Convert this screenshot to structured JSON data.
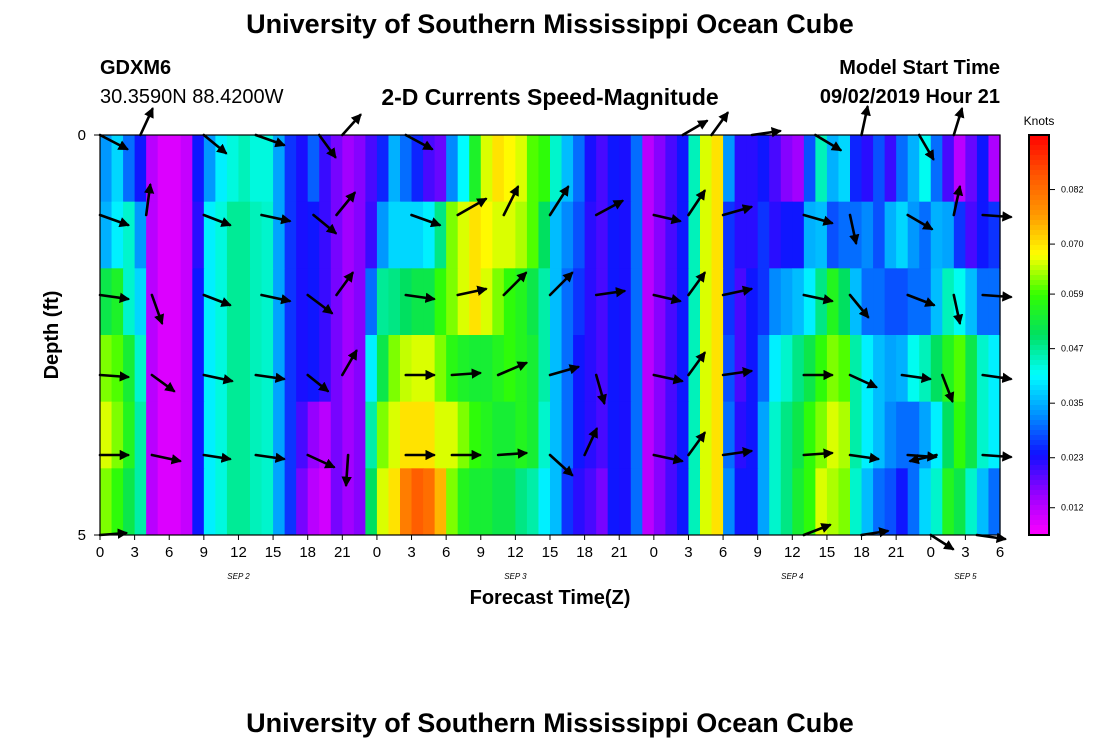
{
  "header": {
    "title": "University of Southern Mississippi Ocean Cube",
    "station_name": "GDXM6",
    "station_coords": "30.3590N 88.4200W",
    "plot_title": "2-D Currents Speed-Magnitude",
    "start_label": "Model Start Time",
    "start_value": "09/02/2019 Hour 21"
  },
  "footer": {
    "title": "University of Southern Mississippi Ocean Cube"
  },
  "chart_data": {
    "type": "heatmap",
    "title": "2-D Currents Speed-Magnitude",
    "xlabel": "Forecast Time(Z)",
    "ylabel": "Depth (ft)",
    "ylim": [
      0,
      5
    ],
    "y_ticks": [
      "0",
      "5"
    ],
    "x_tick_labels": [
      "0",
      "3",
      "6",
      "9",
      "12",
      "15",
      "18",
      "21",
      "0",
      "3",
      "6",
      "9",
      "12",
      "15",
      "18",
      "21",
      "0",
      "3",
      "6",
      "9",
      "12",
      "15",
      "18",
      "21",
      "0",
      "3",
      "6"
    ],
    "date_labels": [
      {
        "label": "SEP 2",
        "hour": 12
      },
      {
        "label": "SEP 3",
        "hour": 36
      },
      {
        "label": "SEP 4",
        "hour": 60
      },
      {
        "label": "SEP 5",
        "hour": 75
      }
    ],
    "x_range_hours": [
      0,
      78
    ],
    "depth_layers": 5,
    "colorbar": {
      "unit": "Knots",
      "range": [
        0.006,
        0.094
      ],
      "tick_values": [
        0.012,
        0.023,
        0.035,
        0.047,
        0.059,
        0.07,
        0.082
      ],
      "tick_labels": [
        "0.012",
        "0.023",
        "0.035",
        "0.047",
        "0.059",
        "0.070",
        "0.082"
      ],
      "colors": [
        "#ff00ff",
        "#9900ff",
        "#1010ff",
        "#0090ff",
        "#00ffff",
        "#00e060",
        "#33ff00",
        "#ffff00",
        "#ff9900",
        "#ff5500",
        "#ff0000"
      ]
    },
    "speed_grid": [
      [
        0.033,
        0.038,
        0.03,
        0.024,
        0.012,
        0.009,
        0.009,
        0.011,
        0.024,
        0.033,
        0.04,
        0.043,
        0.045,
        0.043,
        0.043,
        0.034,
        0.026,
        0.023,
        0.029,
        0.021,
        0.017,
        0.014,
        0.016,
        0.02,
        0.025,
        0.035,
        0.03,
        0.025,
        0.02,
        0.018,
        0.032,
        0.041,
        0.055,
        0.066,
        0.07,
        0.068,
        0.066,
        0.06,
        0.058,
        0.044,
        0.036,
        0.03,
        0.023,
        0.02,
        0.024,
        0.023,
        0.03,
        0.012,
        0.016,
        0.02,
        0.024,
        0.045,
        0.066,
        0.07,
        0.033,
        0.022,
        0.022,
        0.024,
        0.02,
        0.016,
        0.014,
        0.028,
        0.045,
        0.035,
        0.038,
        0.025,
        0.022,
        0.028,
        0.021,
        0.03,
        0.035,
        0.042,
        0.03,
        0.02,
        0.012,
        0.018,
        0.024,
        0.013
      ],
      [
        0.035,
        0.04,
        0.044,
        0.033,
        0.012,
        0.009,
        0.009,
        0.011,
        0.022,
        0.04,
        0.043,
        0.047,
        0.047,
        0.045,
        0.044,
        0.034,
        0.026,
        0.023,
        0.024,
        0.021,
        0.017,
        0.014,
        0.016,
        0.021,
        0.033,
        0.038,
        0.038,
        0.038,
        0.04,
        0.048,
        0.062,
        0.066,
        0.07,
        0.068,
        0.066,
        0.066,
        0.064,
        0.06,
        0.05,
        0.036,
        0.032,
        0.028,
        0.022,
        0.02,
        0.024,
        0.023,
        0.03,
        0.012,
        0.016,
        0.02,
        0.024,
        0.045,
        0.066,
        0.07,
        0.026,
        0.022,
        0.022,
        0.026,
        0.022,
        0.024,
        0.024,
        0.035,
        0.036,
        0.028,
        0.03,
        0.03,
        0.032,
        0.028,
        0.035,
        0.038,
        0.033,
        0.03,
        0.035,
        0.034,
        0.026,
        0.02,
        0.024,
        0.026
      ],
      [
        0.052,
        0.055,
        0.044,
        0.038,
        0.012,
        0.009,
        0.009,
        0.011,
        0.024,
        0.04,
        0.043,
        0.047,
        0.047,
        0.045,
        0.044,
        0.034,
        0.026,
        0.023,
        0.024,
        0.021,
        0.017,
        0.014,
        0.016,
        0.03,
        0.047,
        0.048,
        0.05,
        0.052,
        0.052,
        0.058,
        0.062,
        0.066,
        0.07,
        0.066,
        0.062,
        0.058,
        0.056,
        0.052,
        0.046,
        0.036,
        0.03,
        0.026,
        0.022,
        0.02,
        0.024,
        0.023,
        0.03,
        0.012,
        0.016,
        0.02,
        0.024,
        0.045,
        0.066,
        0.07,
        0.026,
        0.02,
        0.024,
        0.026,
        0.032,
        0.034,
        0.036,
        0.04,
        0.048,
        0.056,
        0.05,
        0.036,
        0.03,
        0.03,
        0.028,
        0.028,
        0.03,
        0.03,
        0.036,
        0.045,
        0.042,
        0.036,
        0.03,
        0.03
      ],
      [
        0.062,
        0.06,
        0.054,
        0.044,
        0.012,
        0.009,
        0.009,
        0.011,
        0.024,
        0.04,
        0.043,
        0.047,
        0.047,
        0.045,
        0.044,
        0.034,
        0.026,
        0.023,
        0.024,
        0.021,
        0.017,
        0.014,
        0.016,
        0.04,
        0.052,
        0.062,
        0.065,
        0.066,
        0.066,
        0.062,
        0.057,
        0.055,
        0.054,
        0.054,
        0.056,
        0.058,
        0.056,
        0.054,
        0.046,
        0.036,
        0.03,
        0.024,
        0.022,
        0.02,
        0.024,
        0.023,
        0.03,
        0.012,
        0.016,
        0.02,
        0.024,
        0.045,
        0.066,
        0.07,
        0.028,
        0.02,
        0.024,
        0.03,
        0.04,
        0.044,
        0.048,
        0.052,
        0.058,
        0.062,
        0.06,
        0.046,
        0.04,
        0.036,
        0.034,
        0.035,
        0.042,
        0.045,
        0.05,
        0.056,
        0.06,
        0.052,
        0.044,
        0.04
      ],
      [
        0.066,
        0.062,
        0.056,
        0.046,
        0.012,
        0.009,
        0.009,
        0.011,
        0.024,
        0.04,
        0.043,
        0.047,
        0.047,
        0.045,
        0.044,
        0.034,
        0.026,
        0.02,
        0.015,
        0.012,
        0.017,
        0.014,
        0.016,
        0.046,
        0.062,
        0.066,
        0.07,
        0.07,
        0.07,
        0.066,
        0.066,
        0.062,
        0.058,
        0.056,
        0.054,
        0.054,
        0.056,
        0.054,
        0.044,
        0.036,
        0.03,
        0.024,
        0.022,
        0.02,
        0.024,
        0.023,
        0.03,
        0.012,
        0.016,
        0.02,
        0.024,
        0.045,
        0.066,
        0.07,
        0.03,
        0.022,
        0.024,
        0.034,
        0.044,
        0.048,
        0.052,
        0.058,
        0.062,
        0.066,
        0.064,
        0.046,
        0.04,
        0.036,
        0.032,
        0.03,
        0.03,
        0.034,
        0.04,
        0.05,
        0.058,
        0.052,
        0.044,
        0.04
      ],
      [
        0.062,
        0.058,
        0.052,
        0.046,
        0.012,
        0.009,
        0.009,
        0.011,
        0.024,
        0.04,
        0.043,
        0.047,
        0.047,
        0.045,
        0.044,
        0.034,
        0.026,
        0.017,
        0.012,
        0.01,
        0.017,
        0.014,
        0.016,
        0.05,
        0.066,
        0.07,
        0.08,
        0.084,
        0.082,
        0.074,
        0.062,
        0.056,
        0.054,
        0.054,
        0.052,
        0.052,
        0.048,
        0.046,
        0.04,
        0.036,
        0.026,
        0.022,
        0.02,
        0.017,
        0.024,
        0.023,
        0.03,
        0.012,
        0.016,
        0.02,
        0.024,
        0.045,
        0.066,
        0.07,
        0.032,
        0.024,
        0.024,
        0.034,
        0.044,
        0.048,
        0.054,
        0.058,
        0.066,
        0.064,
        0.062,
        0.044,
        0.036,
        0.03,
        0.028,
        0.024,
        0.03,
        0.038,
        0.044,
        0.056,
        0.052,
        0.044,
        0.036,
        0.03
      ]
    ],
    "vectors": [
      {
        "hour": 0,
        "level": 0,
        "dx": 27,
        "dy": 14
      },
      {
        "hour": 3.5,
        "level": 0,
        "dx": 12,
        "dy": -26
      },
      {
        "hour": 9,
        "level": 0,
        "dx": 22,
        "dy": 18
      },
      {
        "hour": 13.5,
        "level": 0,
        "dx": 28,
        "dy": 10
      },
      {
        "hour": 19,
        "level": 0,
        "dx": 16,
        "dy": 22
      },
      {
        "hour": 21,
        "level": 0,
        "dx": 18,
        "dy": -20
      },
      {
        "hour": 26.5,
        "level": 0,
        "dx": 26,
        "dy": 14
      },
      {
        "hour": 50.5,
        "level": 0,
        "dx": 24,
        "dy": -14
      },
      {
        "hour": 53,
        "level": 0,
        "dx": 16,
        "dy": -22
      },
      {
        "hour": 56.5,
        "level": 0,
        "dx": 28,
        "dy": -4
      },
      {
        "hour": 62,
        "level": 0,
        "dx": 25,
        "dy": 15
      },
      {
        "hour": 66,
        "level": 0,
        "dx": 6,
        "dy": -28
      },
      {
        "hour": 71,
        "level": 0,
        "dx": 14,
        "dy": 24
      },
      {
        "hour": 74,
        "level": 0,
        "dx": 8,
        "dy": -26
      },
      {
        "hour": 0,
        "level": 1,
        "dx": 28,
        "dy": 10
      },
      {
        "hour": 4,
        "level": 1,
        "dx": 4,
        "dy": -30
      },
      {
        "hour": 9,
        "level": 1,
        "dx": 26,
        "dy": 10
      },
      {
        "hour": 14,
        "level": 1,
        "dx": 28,
        "dy": 6
      },
      {
        "hour": 18.5,
        "level": 1,
        "dx": 22,
        "dy": 18
      },
      {
        "hour": 20.5,
        "level": 1,
        "dx": 18,
        "dy": -22
      },
      {
        "hour": 27,
        "level": 1,
        "dx": 28,
        "dy": 10
      },
      {
        "hour": 31,
        "level": 1,
        "dx": 28,
        "dy": -16
      },
      {
        "hour": 35,
        "level": 1,
        "dx": 14,
        "dy": -28
      },
      {
        "hour": 39,
        "level": 1,
        "dx": 18,
        "dy": -28
      },
      {
        "hour": 43,
        "level": 1,
        "dx": 26,
        "dy": -14
      },
      {
        "hour": 48,
        "level": 1,
        "dx": 26,
        "dy": 6
      },
      {
        "hour": 51,
        "level": 1,
        "dx": 16,
        "dy": -24
      },
      {
        "hour": 54,
        "level": 1,
        "dx": 28,
        "dy": -8
      },
      {
        "hour": 61,
        "level": 1,
        "dx": 28,
        "dy": 8
      },
      {
        "hour": 65,
        "level": 1,
        "dx": 6,
        "dy": 28
      },
      {
        "hour": 70,
        "level": 1,
        "dx": 24,
        "dy": 14
      },
      {
        "hour": 74,
        "level": 1,
        "dx": 6,
        "dy": -28
      },
      {
        "hour": 76.5,
        "level": 1,
        "dx": 28,
        "dy": 2
      },
      {
        "hour": 0,
        "level": 2,
        "dx": 28,
        "dy": 4
      },
      {
        "hour": 4.5,
        "level": 2,
        "dx": 10,
        "dy": 28
      },
      {
        "hour": 9,
        "level": 2,
        "dx": 26,
        "dy": 10
      },
      {
        "hour": 14,
        "level": 2,
        "dx": 28,
        "dy": 6
      },
      {
        "hour": 18,
        "level": 2,
        "dx": 24,
        "dy": 18
      },
      {
        "hour": 20.5,
        "level": 2,
        "dx": 16,
        "dy": -22
      },
      {
        "hour": 26.5,
        "level": 2,
        "dx": 28,
        "dy": 4
      },
      {
        "hour": 31,
        "level": 2,
        "dx": 28,
        "dy": -6
      },
      {
        "hour": 35,
        "level": 2,
        "dx": 22,
        "dy": -22
      },
      {
        "hour": 39,
        "level": 2,
        "dx": 22,
        "dy": -22
      },
      {
        "hour": 43,
        "level": 2,
        "dx": 28,
        "dy": -4
      },
      {
        "hour": 48,
        "level": 2,
        "dx": 26,
        "dy": 6
      },
      {
        "hour": 51,
        "level": 2,
        "dx": 16,
        "dy": -22
      },
      {
        "hour": 54,
        "level": 2,
        "dx": 28,
        "dy": -6
      },
      {
        "hour": 61,
        "level": 2,
        "dx": 28,
        "dy": 6
      },
      {
        "hour": 65,
        "level": 2,
        "dx": 18,
        "dy": 22
      },
      {
        "hour": 70,
        "level": 2,
        "dx": 26,
        "dy": 10
      },
      {
        "hour": 74,
        "level": 2,
        "dx": 6,
        "dy": 28
      },
      {
        "hour": 76.5,
        "level": 2,
        "dx": 28,
        "dy": 2
      },
      {
        "hour": 0,
        "level": 3,
        "dx": 28,
        "dy": 2
      },
      {
        "hour": 4.5,
        "level": 3,
        "dx": 22,
        "dy": 16
      },
      {
        "hour": 9,
        "level": 3,
        "dx": 28,
        "dy": 6
      },
      {
        "hour": 13.5,
        "level": 3,
        "dx": 28,
        "dy": 4
      },
      {
        "hour": 18,
        "level": 3,
        "dx": 20,
        "dy": 16
      },
      {
        "hour": 21,
        "level": 3,
        "dx": 14,
        "dy": -24
      },
      {
        "hour": 26.5,
        "level": 3,
        "dx": 28,
        "dy": 0
      },
      {
        "hour": 30.5,
        "level": 3,
        "dx": 28,
        "dy": -2
      },
      {
        "hour": 34.5,
        "level": 3,
        "dx": 28,
        "dy": -12
      },
      {
        "hour": 39,
        "level": 3,
        "dx": 28,
        "dy": -8
      },
      {
        "hour": 43,
        "level": 3,
        "dx": 8,
        "dy": 28
      },
      {
        "hour": 48,
        "level": 3,
        "dx": 28,
        "dy": 6
      },
      {
        "hour": 51,
        "level": 3,
        "dx": 16,
        "dy": -22
      },
      {
        "hour": 54,
        "level": 3,
        "dx": 28,
        "dy": -4
      },
      {
        "hour": 61,
        "level": 3,
        "dx": 28,
        "dy": 0
      },
      {
        "hour": 65,
        "level": 3,
        "dx": 26,
        "dy": 12
      },
      {
        "hour": 69.5,
        "level": 3,
        "dx": 28,
        "dy": 4
      },
      {
        "hour": 73,
        "level": 3,
        "dx": 10,
        "dy": 26
      },
      {
        "hour": 76.5,
        "level": 3,
        "dx": 28,
        "dy": 4
      },
      {
        "hour": 0,
        "level": 4,
        "dx": 28,
        "dy": 0
      },
      {
        "hour": 4.5,
        "level": 4,
        "dx": 28,
        "dy": 6
      },
      {
        "hour": 9,
        "level": 4,
        "dx": 26,
        "dy": 4
      },
      {
        "hour": 13.5,
        "level": 4,
        "dx": 28,
        "dy": 4
      },
      {
        "hour": 18,
        "level": 4,
        "dx": 26,
        "dy": 12
      },
      {
        "hour": 21.5,
        "level": 4,
        "dx": -2,
        "dy": 30
      },
      {
        "hour": 26.5,
        "level": 4,
        "dx": 28,
        "dy": 0
      },
      {
        "hour": 30.5,
        "level": 4,
        "dx": 28,
        "dy": 0
      },
      {
        "hour": 34.5,
        "level": 4,
        "dx": 28,
        "dy": -2
      },
      {
        "hour": 39,
        "level": 4,
        "dx": 22,
        "dy": 20
      },
      {
        "hour": 42,
        "level": 4,
        "dx": 12,
        "dy": -26
      },
      {
        "hour": 48,
        "level": 4,
        "dx": 28,
        "dy": 6
      },
      {
        "hour": 51,
        "level": 4,
        "dx": 16,
        "dy": -22
      },
      {
        "hour": 54,
        "level": 4,
        "dx": 28,
        "dy": -4
      },
      {
        "hour": 61,
        "level": 4,
        "dx": 28,
        "dy": -2
      },
      {
        "hour": 65,
        "level": 4,
        "dx": 28,
        "dy": 4
      },
      {
        "hour": 70,
        "level": 4,
        "dx": 28,
        "dy": 2
      },
      {
        "hour": 72.5,
        "level": 4,
        "dx": -26,
        "dy": 6
      },
      {
        "hour": 76.5,
        "level": 4,
        "dx": 28,
        "dy": 2
      },
      {
        "hour": 0,
        "level": 5,
        "dx": 26,
        "dy": -2
      },
      {
        "hour": 61,
        "level": 5,
        "dx": 26,
        "dy": -10
      },
      {
        "hour": 66,
        "level": 5,
        "dx": 26,
        "dy": -4
      },
      {
        "hour": 72,
        "level": 5,
        "dx": 22,
        "dy": 14
      },
      {
        "hour": 76,
        "level": 5,
        "dx": 28,
        "dy": 4
      }
    ]
  }
}
